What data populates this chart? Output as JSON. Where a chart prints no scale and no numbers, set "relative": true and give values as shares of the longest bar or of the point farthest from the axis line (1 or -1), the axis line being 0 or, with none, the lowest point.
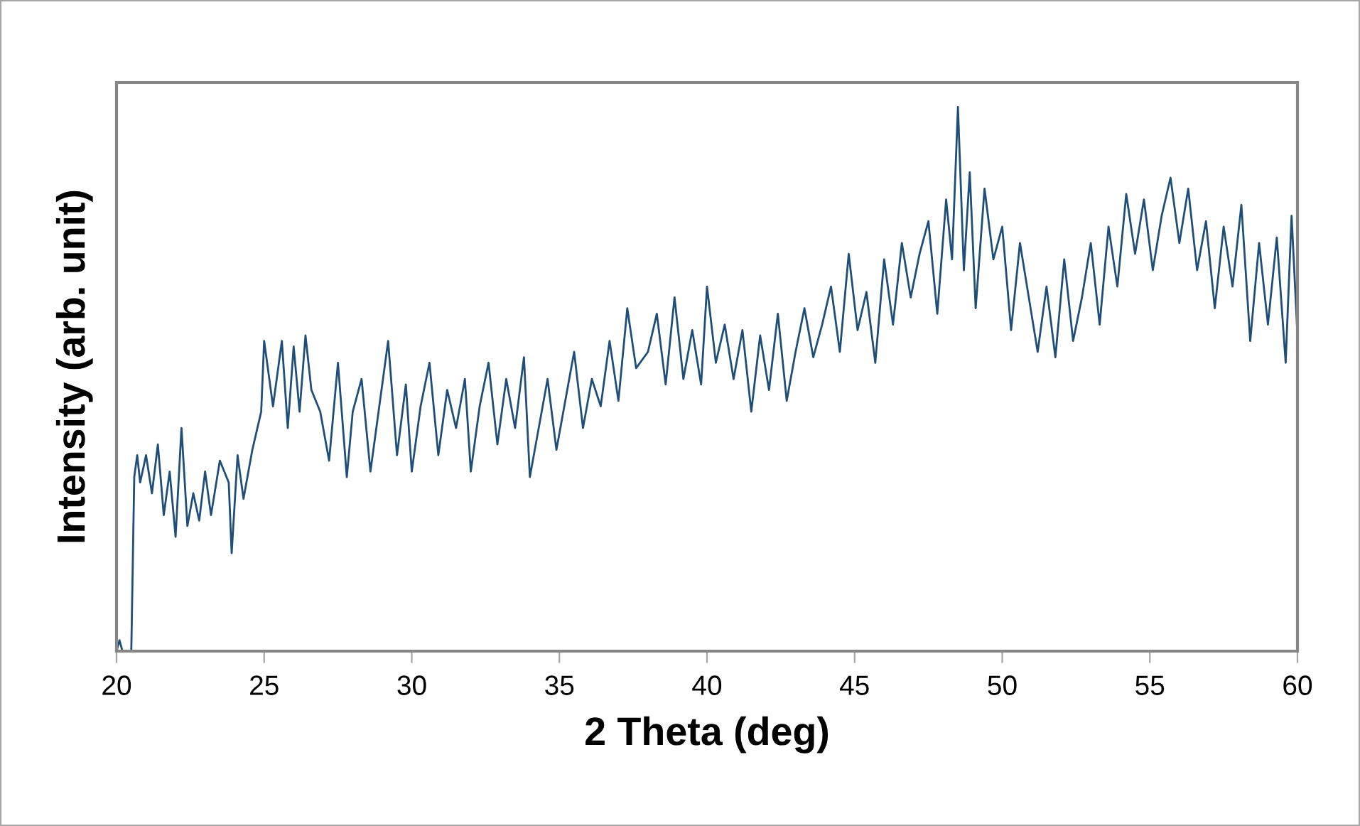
{
  "chart_data": {
    "type": "line",
    "xlabel": "2 Theta (deg)",
    "ylabel": "Intensity (arb. unit)",
    "relative": true,
    "xlim": [
      20,
      60
    ],
    "xticks": [
      20,
      25,
      30,
      35,
      40,
      45,
      50,
      55,
      60
    ],
    "grid": false,
    "legend": false,
    "marker": "none",
    "line_style": "solid",
    "tick_labels": "x",
    "series": [
      {
        "color": "#1f4e79",
        "x": [
          20.0,
          20.1,
          20.2,
          20.5,
          20.6,
          20.7,
          20.8,
          21.0,
          21.2,
          21.4,
          21.6,
          21.8,
          22.0,
          22.2,
          22.4,
          22.6,
          22.8,
          23.0,
          23.2,
          23.5,
          23.8,
          23.9,
          24.1,
          24.3,
          24.6,
          24.9,
          25.0,
          25.3,
          25.6,
          25.8,
          26.0,
          26.2,
          26.4,
          26.6,
          26.9,
          27.2,
          27.5,
          27.8,
          28.0,
          28.3,
          28.6,
          28.9,
          29.2,
          29.5,
          29.8,
          30.0,
          30.3,
          30.6,
          30.9,
          31.2,
          31.5,
          31.8,
          32.0,
          32.3,
          32.6,
          32.9,
          33.2,
          33.5,
          33.8,
          34.0,
          34.3,
          34.6,
          34.9,
          35.2,
          35.5,
          35.8,
          36.1,
          36.4,
          36.7,
          37.0,
          37.3,
          37.6,
          38.0,
          38.3,
          38.6,
          38.9,
          39.2,
          39.5,
          39.8,
          40.0,
          40.3,
          40.6,
          40.9,
          41.2,
          41.5,
          41.8,
          42.1,
          42.4,
          42.7,
          43.0,
          43.3,
          43.6,
          43.9,
          44.2,
          44.5,
          44.8,
          45.1,
          45.4,
          45.7,
          46.0,
          46.3,
          46.6,
          46.9,
          47.2,
          47.5,
          47.8,
          48.1,
          48.3,
          48.5,
          48.7,
          48.9,
          49.1,
          49.4,
          49.7,
          50.0,
          50.3,
          50.6,
          50.9,
          51.2,
          51.5,
          51.8,
          52.1,
          52.4,
          52.7,
          53.0,
          53.3,
          53.6,
          53.9,
          54.2,
          54.5,
          54.8,
          55.1,
          55.4,
          55.7,
          56.0,
          56.3,
          56.6,
          56.9,
          57.2,
          57.5,
          57.8,
          58.1,
          58.4,
          58.7,
          59.0,
          59.3,
          59.6,
          59.8,
          60.0
        ],
        "values": [
          0,
          0.02,
          0,
          0,
          0.32,
          0.36,
          0.31,
          0.36,
          0.29,
          0.38,
          0.25,
          0.33,
          0.21,
          0.41,
          0.23,
          0.29,
          0.24,
          0.33,
          0.25,
          0.35,
          0.31,
          0.18,
          0.36,
          0.28,
          0.37,
          0.44,
          0.57,
          0.45,
          0.57,
          0.41,
          0.56,
          0.44,
          0.58,
          0.48,
          0.44,
          0.35,
          0.53,
          0.32,
          0.44,
          0.5,
          0.33,
          0.45,
          0.57,
          0.36,
          0.49,
          0.33,
          0.45,
          0.53,
          0.36,
          0.48,
          0.41,
          0.5,
          0.33,
          0.45,
          0.53,
          0.38,
          0.5,
          0.41,
          0.54,
          0.32,
          0.41,
          0.5,
          0.37,
          0.46,
          0.55,
          0.41,
          0.5,
          0.45,
          0.57,
          0.46,
          0.63,
          0.52,
          0.55,
          0.62,
          0.49,
          0.65,
          0.5,
          0.59,
          0.49,
          0.67,
          0.53,
          0.6,
          0.5,
          0.59,
          0.44,
          0.58,
          0.48,
          0.62,
          0.46,
          0.55,
          0.63,
          0.54,
          0.6,
          0.67,
          0.55,
          0.73,
          0.59,
          0.66,
          0.53,
          0.72,
          0.6,
          0.75,
          0.65,
          0.73,
          0.79,
          0.62,
          0.83,
          0.72,
          1,
          0.7,
          0.88,
          0.63,
          0.85,
          0.72,
          0.78,
          0.59,
          0.75,
          0.65,
          0.55,
          0.67,
          0.54,
          0.72,
          0.57,
          0.65,
          0.75,
          0.6,
          0.78,
          0.67,
          0.84,
          0.73,
          0.83,
          0.7,
          0.8,
          0.87,
          0.75,
          0.85,
          0.7,
          0.79,
          0.63,
          0.78,
          0.67,
          0.82,
          0.57,
          0.75,
          0.6,
          0.76,
          0.53,
          0.8,
          0.58
        ]
      }
    ]
  }
}
